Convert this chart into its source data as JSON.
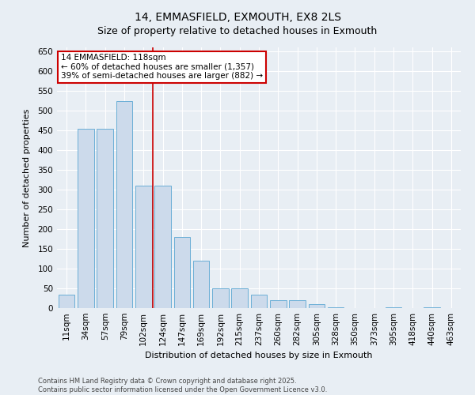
{
  "title": "14, EMMASFIELD, EXMOUTH, EX8 2LS",
  "subtitle": "Size of property relative to detached houses in Exmouth",
  "xlabel": "Distribution of detached houses by size in Exmouth",
  "ylabel": "Number of detached properties",
  "footnote1": "Contains HM Land Registry data © Crown copyright and database right 2025.",
  "footnote2": "Contains public sector information licensed under the Open Government Licence v3.0.",
  "categories": [
    "11sqm",
    "34sqm",
    "57sqm",
    "79sqm",
    "102sqm",
    "124sqm",
    "147sqm",
    "169sqm",
    "192sqm",
    "215sqm",
    "237sqm",
    "260sqm",
    "282sqm",
    "305sqm",
    "328sqm",
    "350sqm",
    "373sqm",
    "395sqm",
    "418sqm",
    "440sqm",
    "463sqm"
  ],
  "values": [
    35,
    455,
    455,
    525,
    310,
    310,
    180,
    120,
    50,
    50,
    35,
    20,
    20,
    10,
    2,
    0,
    0,
    2,
    0,
    2,
    0
  ],
  "bar_color": "#ccdaeb",
  "bar_edge_color": "#6aaed6",
  "background_color": "#e8eef4",
  "annotation_line_label": "14 EMMASFIELD: 118sqm",
  "annotation_text1": "← 60% of detached houses are smaller (1,357)",
  "annotation_text2": "39% of semi-detached houses are larger (882) →",
  "annotation_box_color": "#ffffff",
  "annotation_box_edge": "#cc0000",
  "annotation_line_color": "#cc0000",
  "property_bin_index": 4,
  "ylim": [
    0,
    660
  ],
  "yticks": [
    0,
    50,
    100,
    150,
    200,
    250,
    300,
    350,
    400,
    450,
    500,
    550,
    600,
    650
  ],
  "title_fontsize": 10,
  "subtitle_fontsize": 9,
  "axis_label_fontsize": 8,
  "tick_fontsize": 7.5,
  "footnote_fontsize": 6,
  "annotation_fontsize": 7.5
}
